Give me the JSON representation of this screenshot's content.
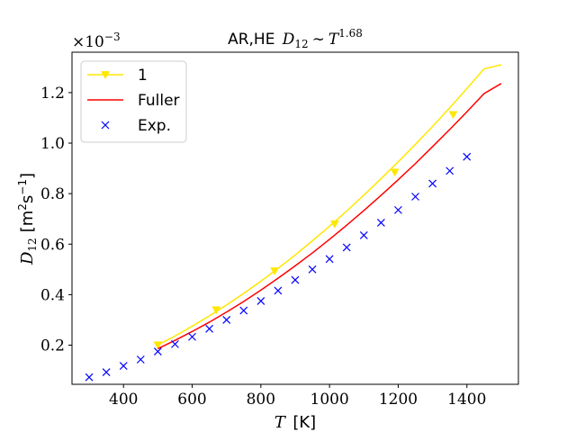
{
  "chart_data": {
    "type": "line",
    "title": "AR,HE D₁₂ ∼ T^1.68",
    "title_parts": {
      "prefix": "AR,HE",
      "var": "D",
      "sub": "12",
      "sim": "∼",
      "var2": "T",
      "exp": "1.68"
    },
    "xlabel": "T [K]",
    "xlabel_parts": {
      "var": "T",
      "unit": "[K]"
    },
    "ylabel": "D₁₂ [m²s⁻¹]",
    "ylabel_parts": {
      "var": "D",
      "sub": "12",
      "unit_a": "[m",
      "sup_a": "2",
      "unit_b": "s",
      "sup_b": "−1",
      "unit_c": "]"
    },
    "offset_text": "×10⁻³",
    "offset_parts": {
      "base": "×10",
      "exp": "−3"
    },
    "xlim": [
      250,
      1550
    ],
    "ylim": [
      4.5e-05,
      0.00136
    ],
    "x_ticks": [
      400,
      600,
      800,
      1000,
      1200,
      1400
    ],
    "x_tick_labels": [
      "400",
      "600",
      "800",
      "1000",
      "1200",
      "1400"
    ],
    "y_ticks": [
      0.0002,
      0.0004,
      0.0006,
      0.0008,
      0.001,
      0.0012
    ],
    "y_tick_labels": [
      "0.2",
      "0.4",
      "0.6",
      "0.8",
      "1.0",
      "1.2"
    ],
    "grid": false,
    "legend_position": "top-left",
    "series": [
      {
        "name": "1",
        "style": "line-marker",
        "marker": "triangle-down",
        "color": "#ffe700",
        "x": [
          500,
          550,
          600,
          650,
          700,
          750,
          800,
          850,
          900,
          950,
          1000,
          1050,
          1100,
          1150,
          1200,
          1250,
          1300,
          1350,
          1400,
          1450,
          1500
        ],
        "y": [
          0.000201,
          0.000236,
          0.000275,
          0.000316,
          0.000359,
          0.000405,
          0.000453,
          0.000504,
          0.000557,
          0.000613,
          0.000671,
          0.000731,
          0.000794,
          0.000859,
          0.000926,
          0.000995,
          0.001066,
          0.00114,
          0.001216,
          0.001294,
          0.00131
        ],
        "marker_points": [
          [
            500,
            0.000201
          ],
          [
            670,
            0.00034
          ],
          [
            840,
            0.000494
          ],
          [
            1015,
            0.00068
          ],
          [
            1190,
            0.000885
          ],
          [
            1360,
            0.001113
          ]
        ]
      },
      {
        "name": "Fuller",
        "style": "line",
        "color": "#ff0000",
        "x": [
          500,
          550,
          600,
          650,
          700,
          750,
          800,
          850,
          900,
          950,
          1000,
          1050,
          1100,
          1150,
          1200,
          1250,
          1300,
          1350,
          1400,
          1450,
          1500
        ],
        "y": [
          0.000186,
          0.000219,
          0.000254,
          0.000291,
          0.000331,
          0.000373,
          0.000418,
          0.000465,
          0.000514,
          0.000565,
          0.000619,
          0.000675,
          0.000733,
          0.000793,
          0.000855,
          0.000919,
          0.000986,
          0.001054,
          0.001124,
          0.001196,
          0.001236
        ]
      },
      {
        "name": "Exp.",
        "style": "marker",
        "marker": "x",
        "color": "#0000ff",
        "x": [
          300,
          350,
          400,
          450,
          500,
          550,
          600,
          650,
          700,
          750,
          800,
          850,
          900,
          950,
          1000,
          1050,
          1100,
          1150,
          1200,
          1250,
          1300,
          1350,
          1400
        ],
        "y": [
          7.3e-05,
          9.3e-05,
          0.000118,
          0.000143,
          0.000175,
          0.000204,
          0.000233,
          0.000265,
          0.0003,
          0.000337,
          0.000375,
          0.000416,
          0.000458,
          0.0005,
          0.000541,
          0.000587,
          0.000635,
          0.000685,
          0.000735,
          0.000788,
          0.00084,
          0.00089,
          0.000946
        ]
      }
    ]
  }
}
